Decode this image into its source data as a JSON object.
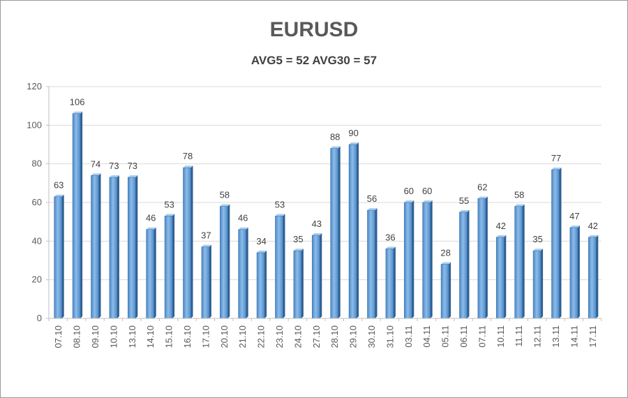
{
  "chart_data": {
    "type": "bar",
    "title": "EURUSD",
    "subtitle": "AVG5 = 52 AVG30 = 57",
    "categories": [
      "07.10",
      "08.10",
      "09.10",
      "10.10",
      "13.10",
      "14.10",
      "15.10",
      "16.10",
      "17.10",
      "20.10",
      "21.10",
      "22.10",
      "23.10",
      "24.10",
      "27.10",
      "28.10",
      "29.10",
      "30.10",
      "31.10",
      "03.11",
      "04.11",
      "05.11",
      "06.11",
      "07.11",
      "10.11",
      "11.11",
      "12.11",
      "13.11",
      "14.11",
      "17.11"
    ],
    "values": [
      63,
      106,
      74,
      73,
      73,
      46,
      53,
      78,
      37,
      58,
      46,
      34,
      53,
      35,
      43,
      88,
      90,
      56,
      36,
      60,
      60,
      28,
      55,
      62,
      42,
      58,
      35,
      77,
      47,
      42
    ],
    "ylim": [
      0,
      120
    ],
    "yticks": [
      0,
      20,
      40,
      60,
      80,
      100,
      120
    ],
    "grid": true,
    "data_labels": true,
    "bar_color": "#5b9bd5"
  }
}
